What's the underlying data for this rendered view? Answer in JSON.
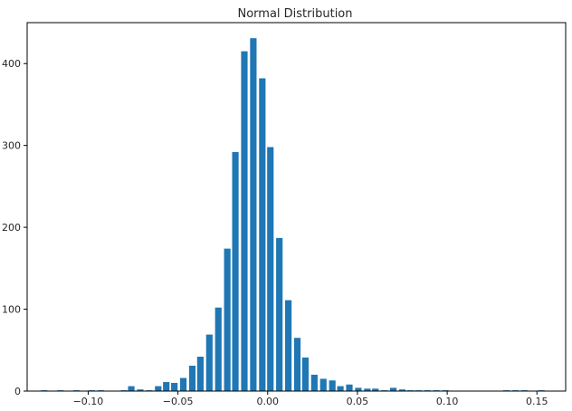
{
  "chart_data": {
    "type": "bar",
    "title": "Normal Distribution",
    "xlabel": "",
    "ylabel": "",
    "xlim": [
      -0.134,
      0.166
    ],
    "ylim": [
      0,
      450
    ],
    "grid": false,
    "bar_color": "#1f77b4",
    "bin_width": 0.0044,
    "x_ticks": [
      -0.1,
      -0.05,
      0.0,
      0.05,
      0.1,
      0.15
    ],
    "x_tick_labels": [
      "−0.10",
      "−0.05",
      "0.00",
      "0.05",
      "0.10",
      "0.15"
    ],
    "y_ticks": [
      0,
      100,
      200,
      300,
      400
    ],
    "y_tick_labels": [
      "0",
      "100",
      "200",
      "300",
      "400"
    ],
    "x": [
      -0.1245,
      -0.1155,
      -0.1065,
      -0.098,
      -0.093,
      -0.08,
      -0.076,
      -0.071,
      -0.066,
      -0.061,
      -0.0565,
      -0.052,
      -0.047,
      -0.042,
      -0.0375,
      -0.0325,
      -0.0275,
      -0.0225,
      -0.018,
      -0.013,
      -0.008,
      -0.003,
      0.0015,
      0.0065,
      0.0115,
      0.0165,
      0.021,
      0.026,
      0.031,
      0.036,
      0.0405,
      0.0455,
      0.0505,
      0.0555,
      0.06,
      0.065,
      0.07,
      0.075,
      0.0795,
      0.084,
      0.089,
      0.094,
      0.099,
      0.133,
      0.138,
      0.143,
      0.1525
    ],
    "values": [
      1,
      1,
      1,
      1,
      1,
      1,
      6,
      2,
      1,
      6,
      11,
      10,
      16,
      31,
      42,
      69,
      102,
      174,
      292,
      415,
      431,
      382,
      298,
      187,
      111,
      65,
      41,
      20,
      15,
      13,
      6,
      8,
      4,
      3,
      3,
      1,
      4,
      2,
      1,
      1,
      1,
      1,
      1,
      1,
      1,
      1,
      1
    ]
  }
}
